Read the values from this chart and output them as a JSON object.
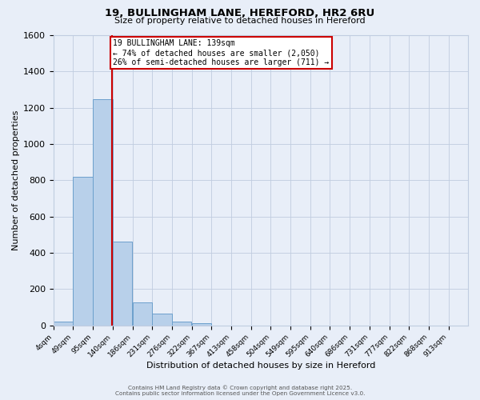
{
  "title": "19, BULLINGHAM LANE, HEREFORD, HR2 6RU",
  "subtitle": "Size of property relative to detached houses in Hereford",
  "xlabel": "Distribution of detached houses by size in Hereford",
  "ylabel": "Number of detached properties",
  "bin_labels": [
    "4sqm",
    "49sqm",
    "95sqm",
    "140sqm",
    "186sqm",
    "231sqm",
    "276sqm",
    "322sqm",
    "367sqm",
    "413sqm",
    "458sqm",
    "504sqm",
    "549sqm",
    "595sqm",
    "640sqm",
    "686sqm",
    "731sqm",
    "777sqm",
    "822sqm",
    "868sqm",
    "913sqm"
  ],
  "bin_edges": [
    4,
    49,
    95,
    140,
    186,
    231,
    276,
    322,
    367,
    413,
    458,
    504,
    549,
    595,
    640,
    686,
    731,
    777,
    822,
    868,
    913
  ],
  "bar_heights": [
    22,
    820,
    1247,
    463,
    128,
    63,
    22,
    13,
    0,
    0,
    0,
    0,
    0,
    0,
    0,
    0,
    0,
    0,
    0,
    0
  ],
  "bar_color": "#b8d0ea",
  "bar_edge_color": "#6ca0cc",
  "property_value": 139,
  "vline_color": "#cc0000",
  "annotation_text": "19 BULLINGHAM LANE: 139sqm\n← 74% of detached houses are smaller (2,050)\n26% of semi-detached houses are larger (711) →",
  "annotation_box_color": "#ffffff",
  "annotation_box_edge": "#cc0000",
  "ylim": [
    0,
    1600
  ],
  "yticks": [
    0,
    200,
    400,
    600,
    800,
    1000,
    1200,
    1400,
    1600
  ],
  "footer_line1": "Contains HM Land Registry data © Crown copyright and database right 2025.",
  "footer_line2": "Contains public sector information licensed under the Open Government Licence v3.0.",
  "bg_color": "#e8eef8",
  "grid_color": "#c0cce0"
}
